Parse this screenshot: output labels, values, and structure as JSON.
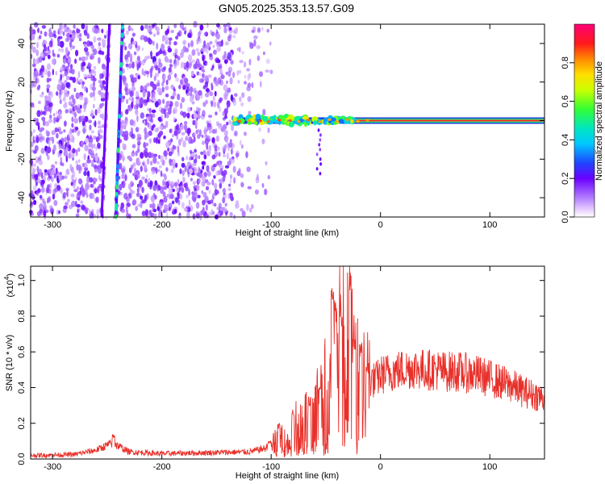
{
  "title": "GN05.2025.353.13.57.G09",
  "chart_data": [
    {
      "type": "heatmap",
      "xlabel": "Height of straight line (km)",
      "ylabel": "Frequency (Hz)",
      "xlim": [
        -320,
        150
      ],
      "ylim": [
        -50,
        50
      ],
      "xticks": [
        -300,
        -200,
        -100,
        0,
        100
      ],
      "yticks": [
        -40,
        -20,
        0,
        20,
        40
      ],
      "colorbar": {
        "label": "Normalized spectral amplitude",
        "range": [
          0,
          1
        ],
        "ticks": [
          "0.0",
          "0.2",
          "0.4",
          "0.6",
          "0.8"
        ]
      },
      "features": [
        {
          "name": "diagonal streak",
          "x_at_bottom": -255,
          "x_at_top": -238
        },
        {
          "name": "carrier line",
          "frequency": 0,
          "x_start": -135,
          "x_end": 150
        }
      ]
    },
    {
      "type": "line",
      "xlabel": "Height of straight line (km)",
      "ylabel": "SNR (10 * v/v)",
      "y_scale_label": "(x10",
      "y_scale_exponent": "4",
      "xlim": [
        -320,
        150
      ],
      "ylim": [
        0,
        1.08
      ],
      "xticks": [
        -300,
        -200,
        -100,
        0,
        100
      ],
      "yticks": [
        "0.0",
        "0.2",
        "0.4",
        "0.6",
        "0.8",
        "1.0"
      ],
      "color": "#e8302a",
      "envelope": {
        "x": [
          -320,
          -280,
          -260,
          -245,
          -230,
          -200,
          -160,
          -120,
          -105,
          -95,
          -85,
          -75,
          -65,
          -55,
          -48,
          -42,
          -38,
          -34,
          -30,
          -26,
          -22,
          -18,
          -12,
          -5,
          0,
          10,
          20,
          30,
          40,
          50,
          60,
          70,
          80,
          90,
          100,
          110,
          120,
          130,
          140,
          150
        ],
        "y": [
          0.02,
          0.025,
          0.05,
          0.09,
          0.04,
          0.03,
          0.035,
          0.04,
          0.06,
          0.12,
          0.14,
          0.2,
          0.25,
          0.32,
          0.45,
          0.55,
          0.65,
          0.68,
          0.62,
          0.55,
          0.48,
          0.46,
          0.45,
          0.44,
          0.47,
          0.49,
          0.5,
          0.51,
          0.5,
          0.5,
          0.49,
          0.49,
          0.48,
          0.47,
          0.45,
          0.43,
          0.41,
          0.38,
          0.36,
          0.34
        ]
      },
      "spikes": [
        {
          "x": -244,
          "y": 0.14
        },
        {
          "x": -102,
          "y": 0.1
        },
        {
          "x": -93,
          "y": 0.2
        },
        {
          "x": -80,
          "y": 0.28
        },
        {
          "x": -65,
          "y": 0.35
        },
        {
          "x": -55,
          "y": 0.45
        },
        {
          "x": -44,
          "y": 1.0
        },
        {
          "x": -41,
          "y": 0.9
        },
        {
          "x": -36,
          "y": 0.8
        },
        {
          "x": -28,
          "y": 1.08
        },
        {
          "x": -24,
          "y": 0.72
        },
        {
          "x": -18,
          "y": 0.66
        },
        {
          "x": -12,
          "y": 0.55
        }
      ]
    }
  ]
}
